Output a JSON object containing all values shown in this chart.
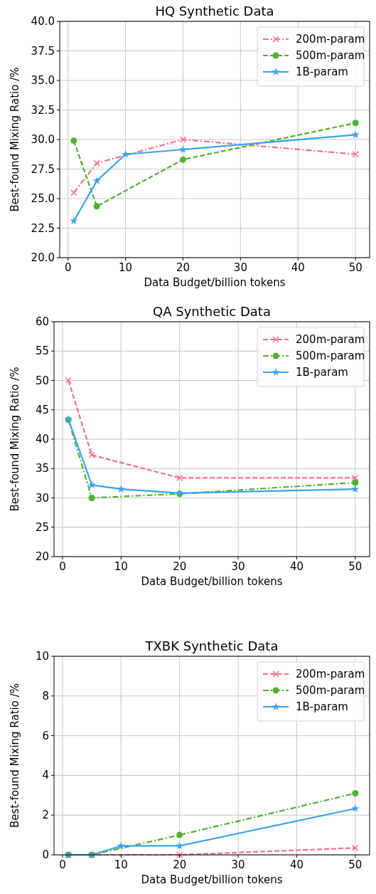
{
  "chart_data": [
    {
      "type": "line",
      "title": "HQ Synthetic Data",
      "xlabel": "Data Budget/billion tokens",
      "ylabel": "Best-found Mixing Ratio /%",
      "xlim": [
        -1.45,
        52.45
      ],
      "xticks": [
        0,
        10,
        20,
        30,
        40,
        50
      ],
      "ylim": [
        20,
        40
      ],
      "yticks": [
        {
          "value": 20,
          "label": "20.0"
        },
        {
          "value": 22.5,
          "label": "22.5"
        },
        {
          "value": 25,
          "label": "25.0"
        },
        {
          "value": 27.5,
          "label": "27.5"
        },
        {
          "value": 30,
          "label": "30.0"
        },
        {
          "value": 32.5,
          "label": "32.5"
        },
        {
          "value": 35,
          "label": "35.0"
        },
        {
          "value": 37.5,
          "label": "37.5"
        },
        {
          "value": 40,
          "label": "40.0"
        }
      ],
      "grid": true,
      "legend": "top right",
      "series": [
        {
          "name": "200m-param",
          "color": "#f77189",
          "marker": "cross",
          "line_style": "dashdot",
          "x": [
            1,
            5,
            20,
            50
          ],
          "values": [
            25.5,
            28.0,
            30.0,
            28.75
          ]
        },
        {
          "name": "500m-param",
          "color": "#50b131",
          "marker": "circle",
          "line_style": "dashed",
          "x": [
            1,
            5,
            20,
            50
          ],
          "values": [
            29.9,
            24.35,
            28.3,
            31.4
          ]
        },
        {
          "name": "1B-param",
          "color": "#3ba3ec",
          "marker": "star",
          "line_style": "solid",
          "x": [
            1,
            5,
            10,
            20,
            50
          ],
          "values": [
            23.1,
            26.5,
            28.75,
            29.15,
            30.4
          ]
        }
      ]
    },
    {
      "type": "line",
      "title": "QA Synthetic Data",
      "xlabel": "Data Budget/billion tokens",
      "ylabel": "Best-found Mixing Ratio /%",
      "xlim": [
        -1.45,
        52.45
      ],
      "xticks": [
        0,
        10,
        20,
        30,
        40,
        50
      ],
      "ylim": [
        20,
        60
      ],
      "yticks": [
        20,
        25,
        30,
        35,
        40,
        45,
        50,
        55,
        60
      ],
      "grid": true,
      "legend": "top right",
      "series": [
        {
          "name": "200m-param",
          "color": "#f77189",
          "marker": "cross",
          "line_style": "dashed",
          "x": [
            1,
            5,
            20,
            50
          ],
          "values": [
            50,
            37.3,
            33.4,
            33.4
          ]
        },
        {
          "name": "500m-param",
          "color": "#50b131",
          "marker": "circle",
          "line_style": "dashdot",
          "x": [
            1,
            5,
            20,
            50
          ],
          "values": [
            43.3,
            30,
            30.7,
            32.6
          ]
        },
        {
          "name": "1B-param",
          "color": "#3ba3ec",
          "marker": "star",
          "line_style": "solid",
          "x": [
            1,
            5,
            10,
            20,
            50
          ],
          "values": [
            43.4,
            32.2,
            31.5,
            30.8,
            31.5
          ]
        }
      ]
    },
    {
      "type": "line",
      "title": "TXBK Synthetic Data",
      "xlabel": "Data Budget/billion tokens",
      "ylabel": "Best-found Mixing Ratio /%",
      "xlim": [
        -1.45,
        52.45
      ],
      "xticks": [
        0,
        10,
        20,
        30,
        40,
        50
      ],
      "ylim": [
        0,
        10
      ],
      "yticks": [
        0,
        2,
        4,
        6,
        8,
        10
      ],
      "grid": true,
      "legend": "top right",
      "series": [
        {
          "name": "200m-param",
          "color": "#f77189",
          "marker": "cross",
          "line_style": "dashed",
          "x": [
            1,
            5,
            20,
            50
          ],
          "values": [
            0,
            0,
            0,
            0.35
          ]
        },
        {
          "name": "500m-param",
          "color": "#50b131",
          "marker": "circle",
          "line_style": "dashdot",
          "x": [
            1,
            5,
            20,
            50
          ],
          "values": [
            0,
            0,
            1.0,
            3.1
          ]
        },
        {
          "name": "1B-param",
          "color": "#3ba3ec",
          "marker": "star",
          "line_style": "solid",
          "x": [
            1,
            5,
            10,
            20,
            50
          ],
          "values": [
            0,
            0,
            0.45,
            0.45,
            2.33
          ]
        }
      ]
    }
  ]
}
